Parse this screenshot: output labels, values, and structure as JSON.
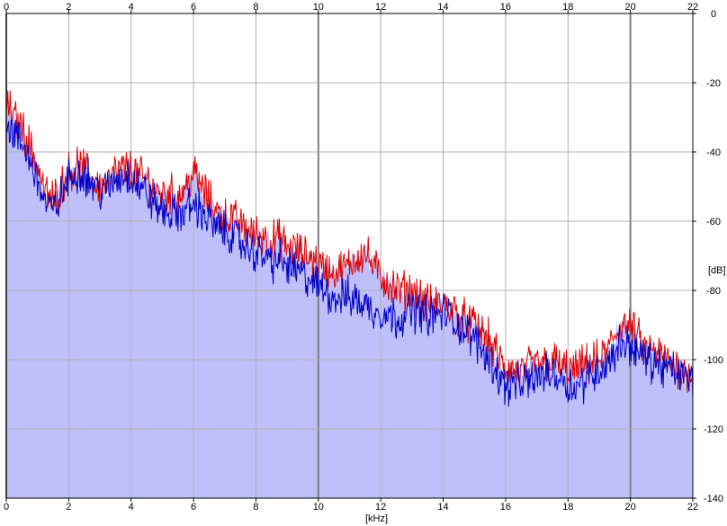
{
  "chart_data": {
    "type": "area",
    "title": "",
    "xlabel": "[kHz]",
    "ylabel": "[dB]",
    "xlim": [
      0,
      22
    ],
    "ylim": [
      -140,
      0
    ],
    "x_ticks": [
      "0",
      "2",
      "4",
      "6",
      "8",
      "10",
      "12",
      "14",
      "16",
      "18",
      "20",
      "22"
    ],
    "y_ticks": [
      "0",
      "-20",
      "-40",
      "-60",
      "-80",
      "-100",
      "-120",
      "-140"
    ],
    "grid": true,
    "legend": "none",
    "colors": {
      "fill": "#bfc0fb",
      "grid": "#b0b0b0",
      "grid_major": "#7f7f7f",
      "series_left": "#e00000",
      "series_right": "#0000c8",
      "frame": "#000000"
    },
    "series": [
      {
        "color": "#e00000",
        "x": [
          0,
          0.25,
          0.5,
          0.75,
          1,
          1.25,
          1.5,
          1.75,
          2,
          2.25,
          2.5,
          2.75,
          3,
          3.25,
          3.5,
          3.75,
          4,
          4.25,
          4.5,
          4.75,
          5,
          5.25,
          5.5,
          5.75,
          6,
          6.25,
          6.5,
          6.75,
          7,
          7.25,
          7.5,
          7.75,
          8,
          8.25,
          8.5,
          8.75,
          9,
          9.25,
          9.5,
          9.75,
          10,
          10.25,
          10.5,
          10.75,
          11,
          11.25,
          11.5,
          11.75,
          12,
          12.25,
          12.5,
          12.75,
          13,
          13.25,
          13.5,
          13.75,
          14,
          14.25,
          14.5,
          14.75,
          15,
          15.25,
          15.5,
          15.75,
          16,
          16.25,
          16.5,
          16.75,
          17,
          17.25,
          17.5,
          17.75,
          18,
          18.25,
          18.5,
          18.75,
          19,
          19.25,
          19.5,
          19.75,
          20,
          20.25,
          20.5,
          20.75,
          21,
          21.25,
          21.5,
          21.75,
          22
        ],
        "values": [
          -26,
          -30,
          -33,
          -38,
          -44,
          -52,
          -54,
          -50,
          -46,
          -44,
          -45,
          -48,
          -50,
          -49,
          -46,
          -45,
          -45,
          -47,
          -48,
          -51,
          -52,
          -52,
          -53,
          -50,
          -46,
          -50,
          -54,
          -57,
          -59,
          -59,
          -61,
          -63,
          -64,
          -64,
          -66,
          -65,
          -68,
          -68,
          -70,
          -70,
          -72,
          -74,
          -75,
          -74,
          -73,
          -70,
          -69,
          -73,
          -76,
          -78,
          -80,
          -80,
          -80,
          -82,
          -84,
          -84,
          -84,
          -85,
          -87,
          -89,
          -90,
          -92,
          -95,
          -99,
          -103,
          -103,
          -104,
          -102,
          -101,
          -101,
          -100,
          -102,
          -103,
          -103,
          -102,
          -101,
          -100,
          -98,
          -93,
          -89,
          -91,
          -94,
          -97,
          -98,
          -99,
          -101,
          -102,
          -103,
          -104
        ]
      },
      {
        "color": "#0000c8",
        "x": [
          0,
          0.25,
          0.5,
          0.75,
          1,
          1.25,
          1.5,
          1.75,
          2,
          2.25,
          2.5,
          2.75,
          3,
          3.25,
          3.5,
          3.75,
          4,
          4.25,
          4.5,
          4.75,
          5,
          5.25,
          5.5,
          5.75,
          6,
          6.25,
          6.5,
          6.75,
          7,
          7.25,
          7.5,
          7.75,
          8,
          8.25,
          8.5,
          8.75,
          9,
          9.25,
          9.5,
          9.75,
          10,
          10.25,
          10.5,
          10.75,
          11,
          11.25,
          11.5,
          11.75,
          12,
          12.25,
          12.5,
          12.75,
          13,
          13.25,
          13.5,
          13.75,
          14,
          14.25,
          14.5,
          14.75,
          15,
          15.25,
          15.5,
          15.75,
          16,
          16.25,
          16.5,
          16.75,
          17,
          17.25,
          17.5,
          17.75,
          18,
          18.25,
          18.5,
          18.75,
          19,
          19.25,
          19.5,
          19.75,
          20,
          20.25,
          20.5,
          20.75,
          21,
          21.25,
          21.5,
          21.75,
          22
        ],
        "values": [
          -32,
          -35,
          -38,
          -42,
          -48,
          -55,
          -57,
          -53,
          -48,
          -46,
          -46,
          -49,
          -51,
          -51,
          -48,
          -47,
          -47,
          -50,
          -52,
          -55,
          -57,
          -58,
          -58,
          -57,
          -55,
          -57,
          -60,
          -62,
          -63,
          -64,
          -66,
          -68,
          -69,
          -70,
          -72,
          -71,
          -73,
          -74,
          -76,
          -77,
          -79,
          -80,
          -82,
          -82,
          -82,
          -83,
          -84,
          -86,
          -86,
          -87,
          -88,
          -87,
          -86,
          -86,
          -87,
          -88,
          -86,
          -88,
          -90,
          -92,
          -94,
          -97,
          -100,
          -104,
          -108,
          -107,
          -107,
          -106,
          -105,
          -104,
          -104,
          -105,
          -107,
          -108,
          -106,
          -104,
          -103,
          -101,
          -98,
          -95,
          -96,
          -98,
          -100,
          -101,
          -102,
          -103,
          -104,
          -105,
          -106
        ]
      }
    ]
  }
}
